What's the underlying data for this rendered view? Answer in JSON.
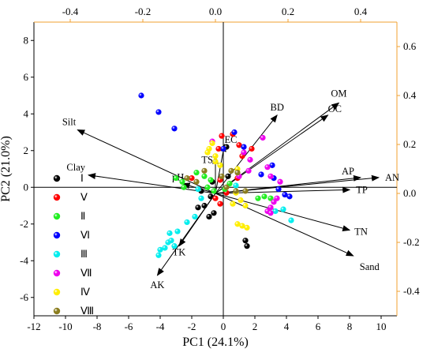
{
  "chart_data": {
    "type": "scatter",
    "subtype": "biplot",
    "title": "",
    "xlabel": "PC1 (24.1%)",
    "ylabel": "PC2 (21.0%)",
    "xlim": [
      -12,
      11
    ],
    "ylim": [
      -7,
      9
    ],
    "xticks": [
      -12,
      -10,
      -8,
      -6,
      -4,
      -2,
      0,
      2,
      4,
      6,
      8,
      10
    ],
    "yticks": [
      -6,
      -4,
      -2,
      0,
      2,
      4,
      6,
      8
    ],
    "secondary_x": {
      "lim": [
        -0.5,
        0.5
      ],
      "ticks": [
        -0.4,
        -0.2,
        0.0,
        0.2,
        0.4
      ],
      "color": "#f0a030"
    },
    "secondary_y": {
      "lim": [
        -0.5,
        0.7
      ],
      "ticks": [
        -0.4,
        -0.2,
        0.0,
        0.2,
        0.4,
        0.6
      ],
      "color": "#f0a030"
    },
    "grid": false,
    "legend_position": "left",
    "series": [
      {
        "name": "Ⅰ",
        "color": "#000000",
        "points": [
          [
            -0.8,
            -0.5
          ],
          [
            -1.2,
            -1.0
          ],
          [
            -0.6,
            -1.4
          ],
          [
            -1.6,
            -1.1
          ],
          [
            -0.9,
            -1.6
          ],
          [
            -1.4,
            -0.2
          ],
          [
            -0.7,
            0.3
          ],
          [
            0.2,
            2.2
          ],
          [
            1.4,
            -2.9
          ],
          [
            1.5,
            -3.2
          ],
          [
            0.3,
            0.6
          ]
        ]
      },
      {
        "name": "Ⅴ",
        "color": "#ff0000",
        "points": [
          [
            -0.3,
            2.1
          ],
          [
            0.6,
            2.9
          ],
          [
            -0.1,
            2.8
          ],
          [
            1.2,
            1.7
          ],
          [
            1.8,
            2.1
          ],
          [
            1.0,
            2.3
          ],
          [
            -0.5,
            -0.6
          ],
          [
            -0.2,
            -0.9
          ],
          [
            -0.2,
            0.4
          ],
          [
            0.2,
            -0.3
          ],
          [
            0.9,
            0.5
          ],
          [
            -2.0,
            0.5
          ]
        ]
      },
      {
        "name": "Ⅱ",
        "color": "#22ee22",
        "points": [
          [
            -2.6,
            0.3
          ],
          [
            -2.5,
            0.0
          ],
          [
            -3.0,
            0.5
          ],
          [
            -1.7,
            0.8
          ],
          [
            -1.2,
            0.6
          ],
          [
            -0.8,
            0.4
          ],
          [
            -1.0,
            0.0
          ],
          [
            -0.6,
            -0.2
          ],
          [
            0.1,
            -0.1
          ],
          [
            2.2,
            -0.6
          ],
          [
            2.6,
            -0.5
          ],
          [
            3.0,
            -0.6
          ],
          [
            0.4,
            0.2
          ]
        ]
      },
      {
        "name": "Ⅵ",
        "color": "#0000ff",
        "points": [
          [
            -5.2,
            5.0
          ],
          [
            -4.1,
            4.1
          ],
          [
            -3.1,
            3.2
          ],
          [
            0.7,
            3.0
          ],
          [
            1.3,
            2.2
          ],
          [
            0.0,
            2.1
          ],
          [
            3.2,
            0.5
          ],
          [
            3.5,
            -0.1
          ],
          [
            3.9,
            -0.4
          ],
          [
            4.2,
            -0.5
          ],
          [
            2.4,
            0.7
          ],
          [
            3.1,
            1.2
          ]
        ]
      },
      {
        "name": "Ⅲ",
        "color": "#00eeee",
        "points": [
          [
            -4.1,
            -3.7
          ],
          [
            -4.0,
            -3.4
          ],
          [
            -3.7,
            -3.3
          ],
          [
            -3.5,
            -3.0
          ],
          [
            -3.3,
            -2.9
          ],
          [
            -3.1,
            -3.2
          ],
          [
            -2.9,
            -2.4
          ],
          [
            -3.4,
            -2.5
          ],
          [
            -2.3,
            -1.9
          ],
          [
            -1.8,
            -1.6
          ],
          [
            3.8,
            -1.2
          ],
          [
            4.3,
            -1.8
          ],
          [
            3.3,
            -1.3
          ],
          [
            0.8,
            0.1
          ],
          [
            -1.4,
            -0.6
          ],
          [
            -1.6,
            -0.1
          ]
        ]
      },
      {
        "name": "Ⅶ",
        "color": "#ee00ee",
        "points": [
          [
            2.5,
            2.7
          ],
          [
            1.3,
            1.9
          ],
          [
            1.7,
            1.5
          ],
          [
            2.8,
            1.1
          ],
          [
            3.0,
            0.6
          ],
          [
            3.6,
            0.3
          ],
          [
            3.4,
            -0.6
          ],
          [
            3.2,
            -0.8
          ],
          [
            3.0,
            -1.1
          ],
          [
            2.8,
            -1.3
          ],
          [
            3.0,
            -1.4
          ],
          [
            1.6,
            0.9
          ],
          [
            -0.7,
            2.5
          ],
          [
            1.0,
            0.6
          ]
        ]
      },
      {
        "name": "Ⅳ",
        "color": "#ffee00",
        "points": [
          [
            -0.9,
            2.1
          ],
          [
            -1.0,
            1.9
          ],
          [
            -0.5,
            1.7
          ],
          [
            -0.2,
            1.2
          ],
          [
            0.9,
            1.0
          ],
          [
            -0.7,
            2.4
          ],
          [
            0.8,
            -0.3
          ],
          [
            1.1,
            -0.7
          ],
          [
            1.4,
            -1.0
          ],
          [
            0.9,
            -2.0
          ],
          [
            1.2,
            -2.1
          ],
          [
            1.5,
            -2.2
          ],
          [
            0.6,
            -0.9
          ],
          [
            -0.5,
            1.4
          ]
        ]
      },
      {
        "name": "Ⅷ",
        "color": "#8b7d1f",
        "points": [
          [
            -1.2,
            0.9
          ],
          [
            -2.3,
            0.5
          ],
          [
            0.5,
            0.9
          ],
          [
            -0.1,
            0.6
          ],
          [
            0.2,
            0.0
          ],
          [
            0.8,
            -0.2
          ],
          [
            1.4,
            -0.2
          ],
          [
            -1.7,
            0.3
          ],
          [
            0.9,
            0.8
          ]
        ]
      }
    ],
    "loadings": [
      {
        "name": "BD",
        "x": 0.17,
        "y": 0.32
      },
      {
        "name": "OM",
        "x": 0.34,
        "y": 0.37
      },
      {
        "name": "OC",
        "x": 0.31,
        "y": 0.32
      },
      {
        "name": "EC",
        "x": 0.025,
        "y": 0.2
      },
      {
        "name": "TS",
        "x": 0.0,
        "y": 0.15
      },
      {
        "name": "Silt",
        "x": -0.38,
        "y": 0.26
      },
      {
        "name": "Clay",
        "x": -0.35,
        "y": 0.075
      },
      {
        "name": "pH",
        "x": -0.09,
        "y": 0.04
      },
      {
        "name": "AP",
        "x": 0.4,
        "y": 0.065
      },
      {
        "name": "AN",
        "x": 0.45,
        "y": 0.065
      },
      {
        "name": "TP",
        "x": 0.37,
        "y": 0.015
      },
      {
        "name": "TN",
        "x": 0.37,
        "y": -0.15
      },
      {
        "name": "Sand",
        "x": 0.38,
        "y": -0.255
      },
      {
        "name": "TK",
        "x": -0.1,
        "y": -0.215
      },
      {
        "name": "AK",
        "x": -0.16,
        "y": -0.335
      }
    ]
  }
}
